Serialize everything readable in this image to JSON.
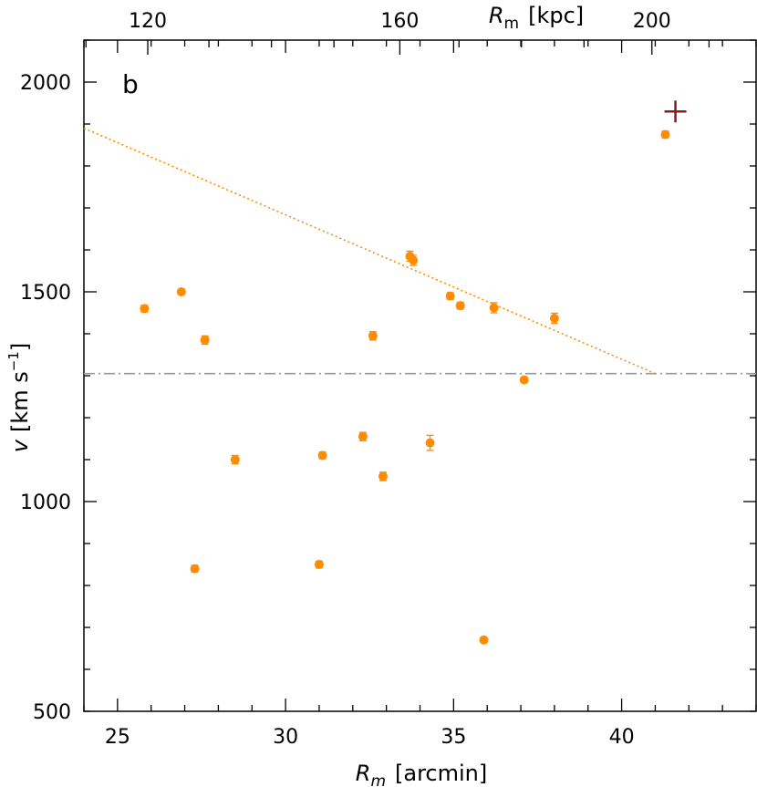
{
  "chart_data": {
    "type": "scatter",
    "panel_label": "b",
    "xlabel_main": "R",
    "xlabel_sub": "m",
    "xlabel_unit": "[arcmin]",
    "x2label_main": "R",
    "x2label_sub": "m",
    "x2label_unit": "[kpc]",
    "ylabel_main": "v",
    "ylabel_unit_a": "[km s",
    "ylabel_sup": "−1",
    "ylabel_unit_b": "]",
    "xlim": [
      24,
      44
    ],
    "ylim": [
      500,
      2100
    ],
    "x_ticks": [
      25,
      30,
      35,
      40
    ],
    "x_tick_labels": [
      "25",
      "30",
      "35",
      "40"
    ],
    "x2_ticks_arcmin": [
      25.9,
      33.4,
      40.9
    ],
    "x2_tick_labels": [
      "120",
      "160",
      "200"
    ],
    "x2_minor_ticks_arcmin": [
      24.06,
      27.72,
      29.58,
      31.44,
      35.16,
      37.02,
      38.88,
      42.6
    ],
    "y_ticks": [
      1000,
      1500,
      2000
    ],
    "y_tick_labels": [
      "1000",
      "1500",
      "2000"
    ],
    "points": [
      {
        "x": 25.8,
        "y": 1460,
        "err": 8
      },
      {
        "x": 26.9,
        "y": 1500,
        "err": 6
      },
      {
        "x": 27.3,
        "y": 840,
        "err": 8
      },
      {
        "x": 27.6,
        "y": 1385,
        "err": 10
      },
      {
        "x": 28.5,
        "y": 1100,
        "err": 10
      },
      {
        "x": 31.0,
        "y": 850,
        "err": 8
      },
      {
        "x": 31.1,
        "y": 1110,
        "err": 8
      },
      {
        "x": 32.3,
        "y": 1155,
        "err": 10
      },
      {
        "x": 32.6,
        "y": 1395,
        "err": 10
      },
      {
        "x": 32.9,
        "y": 1060,
        "err": 10
      },
      {
        "x": 33.7,
        "y": 1585,
        "err": 12
      },
      {
        "x": 33.8,
        "y": 1575,
        "err": 12
      },
      {
        "x": 34.3,
        "y": 1140,
        "err": 18
      },
      {
        "x": 34.9,
        "y": 1490,
        "err": 8
      },
      {
        "x": 35.2,
        "y": 1467,
        "err": 8
      },
      {
        "x": 35.9,
        "y": 670,
        "err": 6
      },
      {
        "x": 36.2,
        "y": 1462,
        "err": 12
      },
      {
        "x": 37.1,
        "y": 1290,
        "err": 6
      },
      {
        "x": 38.0,
        "y": 1437,
        "err": 12
      },
      {
        "x": 41.3,
        "y": 1875,
        "err": 8
      }
    ],
    "special_marker": {
      "shape": "plus",
      "x": 41.6,
      "y": 1930,
      "color": "#8b1a1a"
    },
    "trend_line": {
      "x": [
        24,
        41.0
      ],
      "y": [
        1890,
        1305
      ],
      "style": "dotted",
      "color": "#ff8c00"
    },
    "mean_line": {
      "y": 1305,
      "style": "dash-dot",
      "color": "#999999"
    },
    "point_color": "#ff8c00",
    "grid": false,
    "legend": "none"
  }
}
